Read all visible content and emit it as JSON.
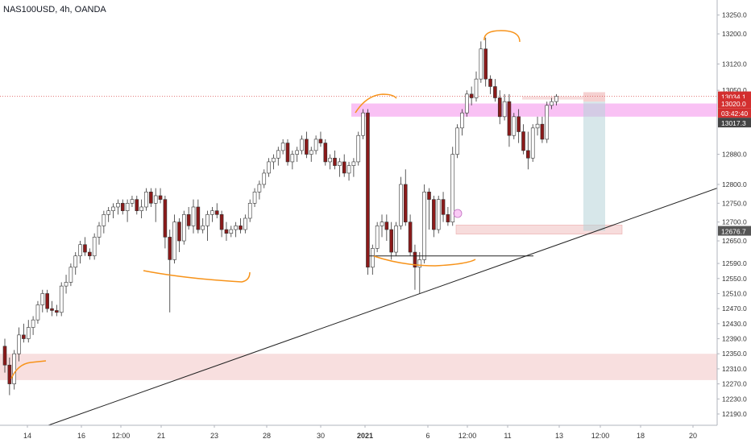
{
  "header": {
    "symbol_title": "NAS100USD, 4h, OANDA"
  },
  "colors": {
    "up_candle": "#ffffff",
    "down_candle": "#8b1a1a",
    "wick": "#333333",
    "drawing_orange": "#f7931a",
    "zone_pink": "#f2c4c4",
    "zone_magenta": "#f7a6f0",
    "position_teal": "#b7d3d9",
    "last_price": "#d32f2f",
    "trendline": "#222222"
  },
  "price_axis": {
    "tick_labels": [
      "13250.0",
      "13200.0",
      "13120.0",
      "13050.0",
      "13034.1",
      "13020.0",
      "03:42:40",
      "13017.3",
      "12880.0",
      "12800.0",
      "12750.0",
      "12700.0",
      "12676.7",
      "12650.0",
      "12590.0",
      "12550.0",
      "12510.0",
      "12470.0",
      "12430.0",
      "12390.0",
      "12350.0",
      "12310.0",
      "12270.0",
      "12230.0",
      "12190.0"
    ]
  },
  "time_axis": {
    "tick_labels": [
      "14",
      "16",
      "12:00",
      "21",
      "23",
      "28",
      "30",
      "2021",
      "6",
      "12:00",
      "11",
      "13",
      "12:00",
      "18",
      "20"
    ],
    "bold_label": "2021"
  },
  "chart_data": {
    "type": "candlestick",
    "title": "NAS100USD, 4h, OANDA",
    "xlabel": "",
    "ylabel": "",
    "ylim": [
      12160,
      13290
    ],
    "log_scale": false,
    "grid": false,
    "last_price": 13034.1,
    "price_labels": {
      "last_price": "13034.1",
      "price_2": "13020.0",
      "countdown": "03:42:40",
      "price_3": "13017.3",
      "price_4": "12676.7"
    },
    "candles": [
      [
        12370,
        12390,
        12300,
        12320
      ],
      [
        12320,
        12340,
        12240,
        12270
      ],
      [
        12270,
        12360,
        12255,
        12350
      ],
      [
        12350,
        12420,
        12330,
        12400
      ],
      [
        12400,
        12430,
        12380,
        12390
      ],
      [
        12390,
        12440,
        12380,
        12420
      ],
      [
        12420,
        12450,
        12400,
        12440
      ],
      [
        12440,
        12490,
        12430,
        12480
      ],
      [
        12480,
        12520,
        12460,
        12510
      ],
      [
        12510,
        12520,
        12460,
        12470
      ],
      [
        12470,
        12490,
        12450,
        12465
      ],
      [
        12465,
        12480,
        12450,
        12460
      ],
      [
        12460,
        12540,
        12450,
        12530
      ],
      [
        12530,
        12560,
        12510,
        12540
      ],
      [
        12540,
        12590,
        12530,
        12580
      ],
      [
        12580,
        12620,
        12560,
        12610
      ],
      [
        12610,
        12650,
        12590,
        12640
      ],
      [
        12640,
        12660,
        12610,
        12620
      ],
      [
        12620,
        12630,
        12600,
        12610
      ],
      [
        12610,
        12670,
        12600,
        12660
      ],
      [
        12660,
        12700,
        12640,
        12690
      ],
      [
        12690,
        12730,
        12670,
        12720
      ],
      [
        12720,
        12740,
        12700,
        12730
      ],
      [
        12730,
        12750,
        12710,
        12740
      ],
      [
        12740,
        12760,
        12720,
        12750
      ],
      [
        12750,
        12760,
        12720,
        12730
      ],
      [
        12730,
        12760,
        12700,
        12750
      ],
      [
        12750,
        12770,
        12740,
        12760
      ],
      [
        12760,
        12770,
        12720,
        12730
      ],
      [
        12730,
        12760,
        12710,
        12740
      ],
      [
        12740,
        12790,
        12730,
        12780
      ],
      [
        12780,
        12790,
        12740,
        12750
      ],
      [
        12750,
        12790,
        12700,
        12770
      ],
      [
        12770,
        12790,
        12750,
        12760
      ],
      [
        12760,
        12770,
        12630,
        12660
      ],
      [
        12660,
        12680,
        12460,
        12600
      ],
      [
        12600,
        12720,
        12590,
        12700
      ],
      [
        12700,
        12710,
        12620,
        12650
      ],
      [
        12650,
        12730,
        12640,
        12720
      ],
      [
        12720,
        12740,
        12680,
        12690
      ],
      [
        12690,
        12760,
        12670,
        12740
      ],
      [
        12740,
        12760,
        12670,
        12680
      ],
      [
        12680,
        12710,
        12670,
        12690
      ],
      [
        12690,
        12730,
        12650,
        12720
      ],
      [
        12720,
        12740,
        12700,
        12730
      ],
      [
        12730,
        12750,
        12710,
        12720
      ],
      [
        12720,
        12730,
        12660,
        12680
      ],
      [
        12680,
        12700,
        12650,
        12670
      ],
      [
        12670,
        12690,
        12660,
        12680
      ],
      [
        12680,
        12700,
        12660,
        12690
      ],
      [
        12690,
        12710,
        12670,
        12680
      ],
      [
        12680,
        12720,
        12670,
        12710
      ],
      [
        12710,
        12760,
        12700,
        12750
      ],
      [
        12750,
        12790,
        12740,
        12780
      ],
      [
        12780,
        12810,
        12760,
        12800
      ],
      [
        12800,
        12840,
        12790,
        12830
      ],
      [
        12830,
        12870,
        12820,
        12860
      ],
      [
        12860,
        12880,
        12840,
        12870
      ],
      [
        12870,
        12900,
        12850,
        12890
      ],
      [
        12890,
        12920,
        12880,
        12910
      ],
      [
        12910,
        12920,
        12850,
        12860
      ],
      [
        12860,
        12890,
        12840,
        12880
      ],
      [
        12880,
        12900,
        12860,
        12890
      ],
      [
        12890,
        12930,
        12880,
        12920
      ],
      [
        12920,
        12940,
        12870,
        12880
      ],
      [
        12880,
        12900,
        12860,
        12890
      ],
      [
        12890,
        12930,
        12880,
        12920
      ],
      [
        12920,
        12940,
        12900,
        12910
      ],
      [
        12910,
        12920,
        12850,
        12860
      ],
      [
        12860,
        12880,
        12840,
        12870
      ],
      [
        12870,
        12890,
        12840,
        12850
      ],
      [
        12850,
        12870,
        12820,
        12860
      ],
      [
        12860,
        12880,
        12820,
        12830
      ],
      [
        12830,
        12860,
        12810,
        12850
      ],
      [
        12850,
        12870,
        12820,
        12860
      ],
      [
        12860,
        12940,
        12850,
        12930
      ],
      [
        12930,
        13000,
        12920,
        12990
      ],
      [
        12990,
        13000,
        12560,
        12580
      ],
      [
        12580,
        12640,
        12560,
        12630
      ],
      [
        12630,
        12700,
        12620,
        12690
      ],
      [
        12690,
        12720,
        12660,
        12700
      ],
      [
        12700,
        12720,
        12650,
        12680
      ],
      [
        12680,
        12700,
        12600,
        12620
      ],
      [
        12620,
        12700,
        12610,
        12690
      ],
      [
        12690,
        12820,
        12680,
        12800
      ],
      [
        12800,
        12840,
        12690,
        12700
      ],
      [
        12700,
        12720,
        12610,
        12620
      ],
      [
        12620,
        12640,
        12520,
        12580
      ],
      [
        12580,
        12620,
        12510,
        12600
      ],
      [
        12600,
        12800,
        12590,
        12780
      ],
      [
        12780,
        12790,
        12680,
        12760
      ],
      [
        12760,
        12770,
        12660,
        12680
      ],
      [
        12680,
        12770,
        12670,
        12760
      ],
      [
        12760,
        12780,
        12700,
        12720
      ],
      [
        12720,
        12740,
        12690,
        12700
      ],
      [
        12700,
        12900,
        12690,
        12880
      ],
      [
        12880,
        12960,
        12870,
        12950
      ],
      [
        12950,
        13000,
        12930,
        12990
      ],
      [
        12990,
        13050,
        12980,
        13040
      ],
      [
        13040,
        13060,
        13010,
        13030
      ],
      [
        13030,
        13100,
        13020,
        13080
      ],
      [
        13080,
        13180,
        13070,
        13160
      ],
      [
        13160,
        13190,
        13060,
        13080
      ],
      [
        13080,
        13090,
        13040,
        13060
      ],
      [
        13060,
        13080,
        13020,
        13030
      ],
      [
        13030,
        13050,
        12960,
        12980
      ],
      [
        12980,
        13040,
        12970,
        13020
      ],
      [
        13020,
        13040,
        12900,
        12930
      ],
      [
        12930,
        12990,
        12920,
        12980
      ],
      [
        12980,
        13000,
        12910,
        12940
      ],
      [
        12940,
        12960,
        12880,
        12890
      ],
      [
        12890,
        12940,
        12840,
        12870
      ],
      [
        12870,
        12960,
        12860,
        12950
      ],
      [
        12950,
        12980,
        12930,
        12960
      ],
      [
        12960,
        12980,
        12910,
        12920
      ],
      [
        12920,
        13020,
        12910,
        13010
      ],
      [
        13010,
        13030,
        13000,
        13020
      ],
      [
        13020,
        13040,
        13010,
        13034
      ]
    ]
  }
}
